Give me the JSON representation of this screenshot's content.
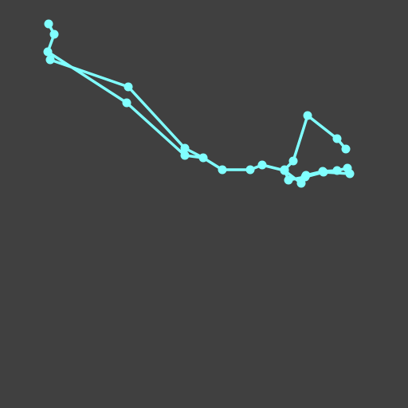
{
  "colors": {
    "background": "#404040",
    "stroke": "#80ffff"
  },
  "figure": {
    "kind": "connected point path",
    "point_count": 29,
    "segment_count": 28
  }
}
